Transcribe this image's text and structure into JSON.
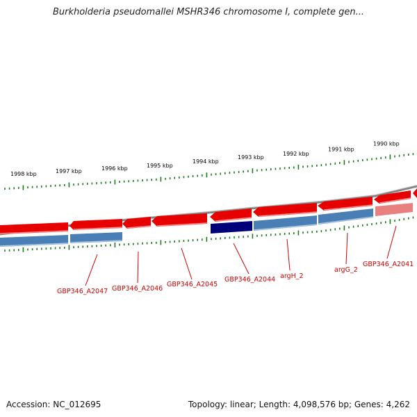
{
  "title": "Burkholderia pseudomallei MSHR346 chromosome I, complete gen...",
  "footer": {
    "accession": "Accession: NC_012695",
    "summary": "Topology: linear; Length: 4,098,576 bp; Genes: 4,262"
  },
  "colors": {
    "forward_gene": "#e60000",
    "reverse_gene": "#4a7fb5",
    "highlight_gene": "#00007a",
    "backbone": "#808080",
    "ticks": "#1a7a1a",
    "label": "#cc0000"
  },
  "scale": {
    "unit": "kbp",
    "labels": [
      "1998 kbp",
      "1997 kbp",
      "1996 kbp",
      "1995 kbp",
      "1994 kbp",
      "1993 kbp",
      "1992 kbp",
      "1991 kbp",
      "1990 kbp"
    ]
  },
  "gene_labels": [
    "GBP346_A2047",
    "GBP346_A2046",
    "GBP346_A2045",
    "GBP346_A2044",
    "argH_2",
    "argG_2",
    "GBP346_A2041"
  ]
}
